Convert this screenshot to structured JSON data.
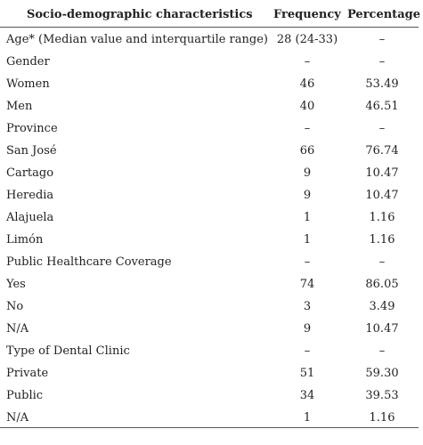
{
  "table": {
    "headers": [
      "Socio-demographic characteristics",
      "Frequency",
      "Percentage"
    ],
    "rows": [
      [
        "Age* (Median value and interquartile range)",
        "28 (24-33)",
        "–"
      ],
      [
        "Gender",
        "–",
        "–"
      ],
      [
        "Women",
        "46",
        "53.49"
      ],
      [
        "Men",
        "40",
        "46.51"
      ],
      [
        "Province",
        "–",
        "–"
      ],
      [
        "San José",
        "66",
        "76.74"
      ],
      [
        "Cartago",
        "9",
        "10.47"
      ],
      [
        "Heredia",
        "9",
        "10.47"
      ],
      [
        "Alajuela",
        "1",
        "1.16"
      ],
      [
        "Limón",
        "1",
        "1.16"
      ],
      [
        "Public Healthcare Coverage",
        "–",
        "–"
      ],
      [
        "Yes",
        "74",
        "86.05"
      ],
      [
        "No",
        "3",
        "3.49"
      ],
      [
        "N/A",
        "9",
        "10.47"
      ],
      [
        "Type of Dental Clinic",
        "–",
        "–"
      ],
      [
        "Private",
        "51",
        "59.30"
      ],
      [
        "Public",
        "34",
        "39.53"
      ],
      [
        "N/A",
        "1",
        "1.16"
      ]
    ]
  }
}
